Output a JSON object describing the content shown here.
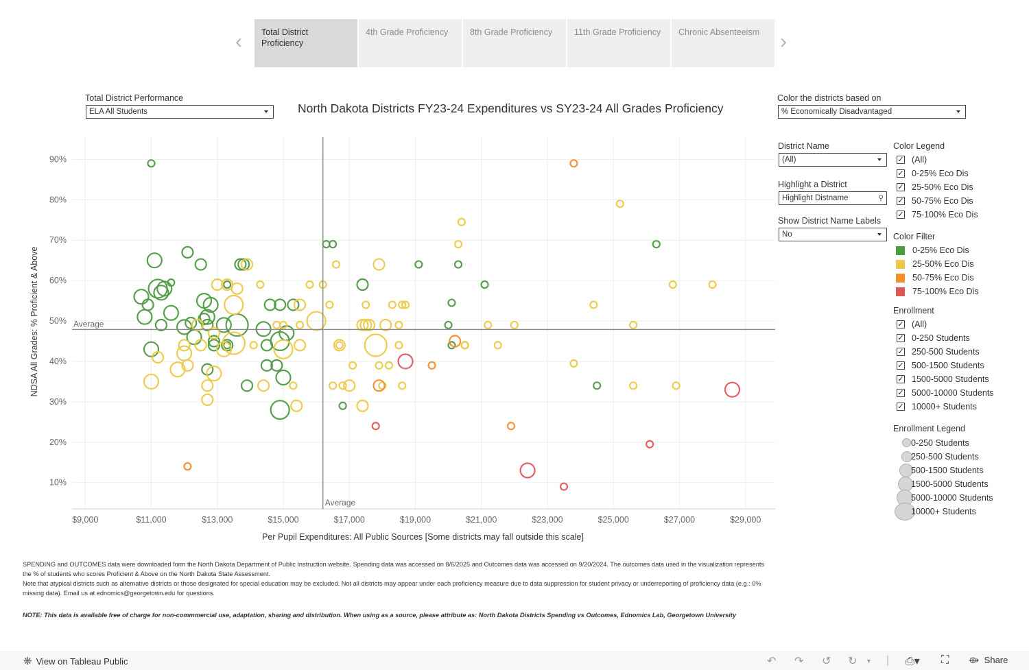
{
  "tabs": [
    "Total District Proficiency",
    "4th Grade Proficiency",
    "8th Grade Proficiency",
    "11th Grade Proficiency",
    "Chronic Absenteeism"
  ],
  "nav": {
    "prev_icon": "chevron-left-icon",
    "next_icon": "chevron-right-icon"
  },
  "performance_filter": {
    "label": "Total District Performance",
    "value": "ELA All Students"
  },
  "color_by": {
    "label": "Color the districts based on",
    "value": "% Economically Disadvantaged"
  },
  "district_name": {
    "label": "District Name",
    "value": "(All)"
  },
  "highlight": {
    "label": "Highlight a District",
    "placeholder": "Highlight Distname"
  },
  "show_labels": {
    "label": "Show District Name Labels",
    "value": "No"
  },
  "color_legend": {
    "title": "Color Legend",
    "items": [
      "(All)",
      "0-25% Eco Dis",
      "25-50% Eco Dis",
      "50-75% Eco Dis",
      "75-100% Eco Dis"
    ]
  },
  "color_filter": {
    "title": "Color Filter",
    "items": [
      {
        "label": "0-25% Eco Dis",
        "color": "#4e9a43"
      },
      {
        "label": "25-50% Eco Dis",
        "color": "#edc949"
      },
      {
        "label": "50-75% Eco Dis",
        "color": "#f28e2b"
      },
      {
        "label": "75-100% Eco Dis",
        "color": "#e15759"
      }
    ]
  },
  "enrollment": {
    "title": "Enrollment",
    "items": [
      "(All)",
      "0-250 Students",
      "250-500 Students",
      "500-1500 Students",
      "1500-5000 Students",
      "5000-10000 Students",
      "10000+ Students"
    ]
  },
  "enrollment_legend": {
    "title": "Enrollment Legend",
    "items": [
      "0-250 Students",
      "250-500 Students",
      "500-1500 Students",
      "1500-5000 Students",
      "5000-10000 Students",
      "10000+ Students"
    ]
  },
  "notes": {
    "line1": "SPENDING and OUTCOMES data were downloaded form the North Dakota Department of Public Instruction website. Spending data was accessed on 8/6/2025 and Outcomes data was accessed on 9/20/2024. The outcomes data used in the visualization represents the % of students who scores Proficient & Above on the North Dakota State Assessment.",
    "line2": "Note that atypical districts such as alternative districts or those designated for special education may be excluded. Not all districts may appear under each proficiency measure due to data suppression for student privacy or underreporting of proficiency data (e.g.: 0% missing data). Email us at ednomics@georgetown.edu for questions.",
    "line3": "NOTE: This data is available free of charge for non-commmercial use, adaptation, sharing and distribution. When using as a source, please attribute as: North Dakota Districts Spending vs Outcomes, Ednomics Lab, Georgetown University"
  },
  "bottom": {
    "view_label": "View on Tableau Public",
    "share_label": "Share"
  },
  "chart_data": {
    "type": "scatter",
    "title": "North Dakota Districts FY23-24 Expenditures vs SY23-24 All Grades Proficiency",
    "xlabel": "Per Pupil Expenditures: All Public Sources [Some districts may fall outside this scale]",
    "ylabel": "NDSA All Grades: % Proficient & Above",
    "xlim": [
      8600,
      29900
    ],
    "ylim": [
      3.5,
      95.5
    ],
    "x_ticks": [
      9000,
      11000,
      13000,
      15000,
      17000,
      19000,
      21000,
      23000,
      25000,
      27000,
      29000
    ],
    "x_tick_labels": [
      "$9,000",
      "$11,000",
      "$13,000",
      "$15,000",
      "$17,000",
      "$19,000",
      "$21,000",
      "$23,000",
      "$25,000",
      "$27,000",
      "$29,000"
    ],
    "y_ticks": [
      10,
      20,
      30,
      40,
      50,
      60,
      70,
      80,
      90
    ],
    "y_tick_labels": [
      "10%",
      "20%",
      "30%",
      "40%",
      "50%",
      "60%",
      "70%",
      "80%",
      "90%"
    ],
    "grid": true,
    "average": {
      "x": 16200,
      "y": 47.9,
      "label": "Average"
    },
    "size_field": "enrollment_band",
    "series": [
      {
        "name": "0-25% Eco Dis",
        "color": "#4e9a43",
        "points": [
          [
            11000,
            89,
            1
          ],
          [
            10700,
            56,
            3
          ],
          [
            10900,
            54,
            2
          ],
          [
            11100,
            65,
            3
          ],
          [
            11200,
            58,
            4
          ],
          [
            11600,
            59.5,
            1
          ],
          [
            12100,
            67,
            2
          ],
          [
            12500,
            64,
            2
          ],
          [
            11300,
            57,
            3
          ],
          [
            11400,
            58,
            3
          ],
          [
            10800,
            51,
            3
          ],
          [
            11600,
            52,
            3
          ],
          [
            11300,
            49,
            2
          ],
          [
            11000,
            43,
            3
          ],
          [
            12000,
            48.5,
            3
          ],
          [
            12200,
            49.5,
            2
          ],
          [
            12300,
            46,
            3
          ],
          [
            12600,
            55,
            3
          ],
          [
            12700,
            51,
            3
          ],
          [
            12700,
            49,
            2
          ],
          [
            12800,
            54,
            3
          ],
          [
            12900,
            44,
            2
          ],
          [
            12700,
            38,
            2
          ],
          [
            13200,
            49,
            3
          ],
          [
            13300,
            44,
            2
          ],
          [
            13300,
            59,
            1
          ],
          [
            13600,
            49,
            5
          ],
          [
            13700,
            64,
            2
          ],
          [
            13800,
            64,
            2
          ],
          [
            13900,
            34,
            2
          ],
          [
            14400,
            48,
            3
          ],
          [
            14500,
            39,
            2
          ],
          [
            14500,
            44,
            2
          ],
          [
            14600,
            54,
            2
          ],
          [
            14800,
            39,
            2
          ],
          [
            14900,
            45,
            4
          ],
          [
            14900,
            54,
            2
          ],
          [
            15000,
            36,
            3
          ],
          [
            15100,
            47,
            3
          ],
          [
            15300,
            54,
            2
          ],
          [
            14900,
            28,
            4
          ],
          [
            16300,
            69,
            1
          ],
          [
            16500,
            69,
            1
          ],
          [
            16800,
            29,
            1
          ],
          [
            17400,
            59,
            2
          ],
          [
            19100,
            64,
            1
          ],
          [
            20000,
            49,
            1
          ],
          [
            20100,
            44,
            1
          ],
          [
            20100,
            54.5,
            1
          ],
          [
            20300,
            64,
            1
          ],
          [
            21100,
            59,
            1
          ],
          [
            24500,
            34,
            1
          ],
          [
            26300,
            69,
            1
          ],
          [
            12600,
            50.5,
            2
          ],
          [
            12900,
            45,
            2
          ],
          [
            13300,
            44,
            1
          ]
        ]
      },
      {
        "name": "25-50% Eco Dis",
        "color": "#edc949",
        "points": [
          [
            11000,
            35,
            3
          ],
          [
            11200,
            41,
            2
          ],
          [
            11800,
            38,
            3
          ],
          [
            12000,
            42,
            3
          ],
          [
            12000,
            44,
            2
          ],
          [
            12100,
            39,
            2
          ],
          [
            12400,
            49,
            2
          ],
          [
            12500,
            44,
            2
          ],
          [
            12700,
            34,
            2
          ],
          [
            12700,
            30.5,
            2
          ],
          [
            12900,
            37,
            3
          ],
          [
            12900,
            47,
            2
          ],
          [
            13000,
            59,
            2
          ],
          [
            13200,
            43,
            3
          ],
          [
            13300,
            59,
            2
          ],
          [
            13500,
            44.5,
            5
          ],
          [
            13500,
            54,
            4
          ],
          [
            13600,
            58,
            2
          ],
          [
            13900,
            64,
            2
          ],
          [
            14100,
            44,
            1
          ],
          [
            14300,
            59,
            1
          ],
          [
            14400,
            34,
            2
          ],
          [
            14800,
            49,
            1
          ],
          [
            15000,
            43,
            4
          ],
          [
            15000,
            49,
            1
          ],
          [
            15300,
            34,
            1
          ],
          [
            15400,
            29,
            2
          ],
          [
            15500,
            54,
            2
          ],
          [
            15500,
            49,
            1
          ],
          [
            15500,
            44,
            2
          ],
          [
            15800,
            59,
            1
          ],
          [
            16000,
            50,
            4
          ],
          [
            16200,
            59,
            1
          ],
          [
            16400,
            54,
            1
          ],
          [
            16500,
            34,
            1
          ],
          [
            16700,
            44,
            2
          ],
          [
            16800,
            34,
            1
          ],
          [
            17000,
            34,
            2
          ],
          [
            17100,
            39,
            1
          ],
          [
            17400,
            29,
            2
          ],
          [
            17400,
            49,
            2
          ],
          [
            17500,
            49,
            2
          ],
          [
            17500,
            54,
            1
          ],
          [
            17600,
            49,
            2
          ],
          [
            17800,
            44,
            5
          ],
          [
            17900,
            64,
            2
          ],
          [
            17900,
            39,
            1
          ],
          [
            18000,
            34,
            1
          ],
          [
            18100,
            49,
            2
          ],
          [
            18200,
            39,
            1
          ],
          [
            18300,
            54,
            1
          ],
          [
            18500,
            44,
            1
          ],
          [
            18600,
            34,
            1
          ],
          [
            18600,
            54,
            1
          ],
          [
            18700,
            54,
            1
          ],
          [
            18500,
            49,
            1
          ],
          [
            20300,
            69,
            1
          ],
          [
            20400,
            74.5,
            1
          ],
          [
            20500,
            44,
            1
          ],
          [
            20500,
            44,
            1
          ],
          [
            21200,
            49,
            1
          ],
          [
            21500,
            44,
            1
          ],
          [
            22000,
            49,
            1
          ],
          [
            23800,
            39.5,
            1
          ],
          [
            24400,
            54,
            1
          ],
          [
            25200,
            79,
            1
          ],
          [
            25600,
            49,
            1
          ],
          [
            25600,
            34,
            1
          ],
          [
            26800,
            59,
            1
          ],
          [
            26900,
            34,
            1
          ],
          [
            28000,
            59,
            1
          ],
          [
            16600,
            64,
            1
          ],
          [
            16700,
            44,
            1
          ]
        ]
      },
      {
        "name": "50-75% Eco Dis",
        "color": "#f28e2b",
        "points": [
          [
            12100,
            14,
            1
          ],
          [
            17900,
            34,
            2
          ],
          [
            19500,
            39,
            1
          ],
          [
            20200,
            45,
            2
          ],
          [
            21900,
            24,
            1
          ],
          [
            23800,
            89,
            1
          ]
        ]
      },
      {
        "name": "75-100% Eco Dis",
        "color": "#e15759",
        "points": [
          [
            18700,
            40,
            3
          ],
          [
            17800,
            24,
            1
          ],
          [
            22400,
            13,
            3
          ],
          [
            23500,
            9,
            1
          ],
          [
            26100,
            19.5,
            1
          ],
          [
            28600,
            33,
            3
          ]
        ]
      }
    ]
  }
}
